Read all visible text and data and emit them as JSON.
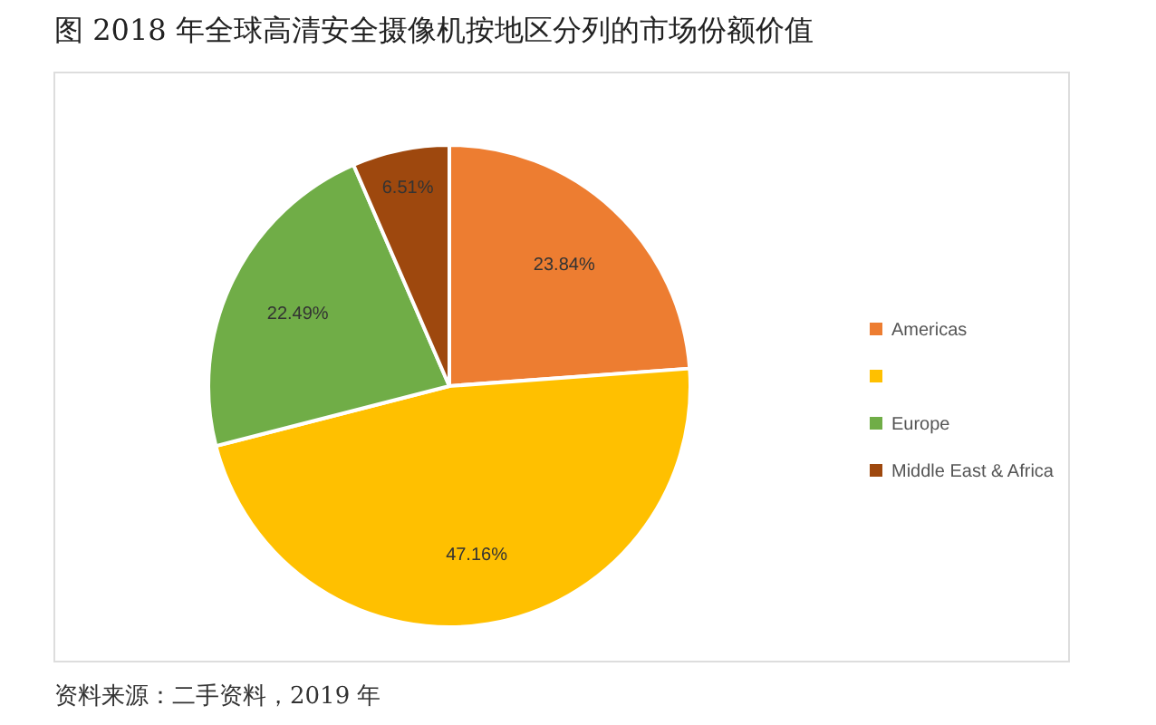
{
  "chart_data": {
    "type": "pie",
    "title": "图 2018 年全球高清安全摄像机按地区分列的市场份额价值",
    "categories": [
      "Americas",
      null,
      "Europe",
      "Middle East & Africa"
    ],
    "values": [
      23.84,
      47.16,
      22.49,
      6.51
    ],
    "value_labels": [
      "23.84%",
      "47.16%",
      "22.49%",
      "6.51%"
    ],
    "colors": [
      "#ed7d31",
      "#ffc000",
      "#70ad47",
      "#9e480e"
    ],
    "legend": "right",
    "annotations": [
      "资料来源：二手资料，2019 年"
    ]
  }
}
